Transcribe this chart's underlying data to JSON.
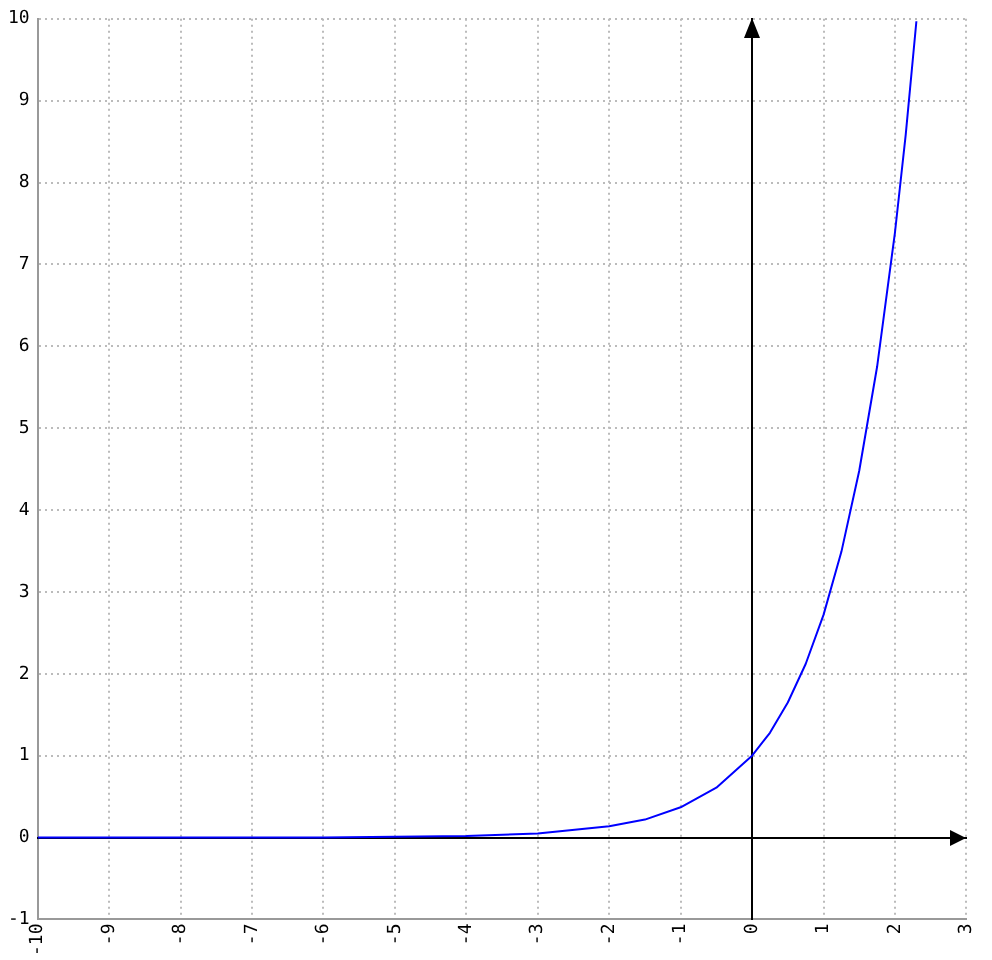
{
  "chart_data": {
    "type": "line",
    "x": [
      -10,
      -9,
      -8,
      -7,
      -6,
      -5,
      -4,
      -3,
      -2,
      -1.5,
      -1,
      -0.5,
      0,
      0.25,
      0.5,
      0.75,
      1,
      1.25,
      1.5,
      1.75,
      2,
      2.15,
      2.3
    ],
    "series": [
      {
        "color": "#0000ff",
        "values": [
          0,
          0,
          0,
          0,
          0,
          0.01,
          0.02,
          0.05,
          0.14,
          0.22,
          0.37,
          0.61,
          1,
          1.28,
          1.65,
          2.12,
          2.72,
          3.49,
          4.48,
          5.75,
          7.39,
          8.58,
          9.97
        ]
      }
    ],
    "xlim": [
      -10,
      3
    ],
    "ylim": [
      -1,
      10
    ],
    "xticks": [
      -10,
      -9,
      -8,
      -7,
      -6,
      -5,
      -4,
      -3,
      -2,
      -1,
      0,
      1,
      2,
      3
    ],
    "yticks": [
      -1,
      0,
      1,
      2,
      3,
      4,
      5,
      6,
      7,
      8,
      9,
      10
    ],
    "grid": true,
    "legend": false,
    "marker": "none",
    "line_style": "solid"
  }
}
